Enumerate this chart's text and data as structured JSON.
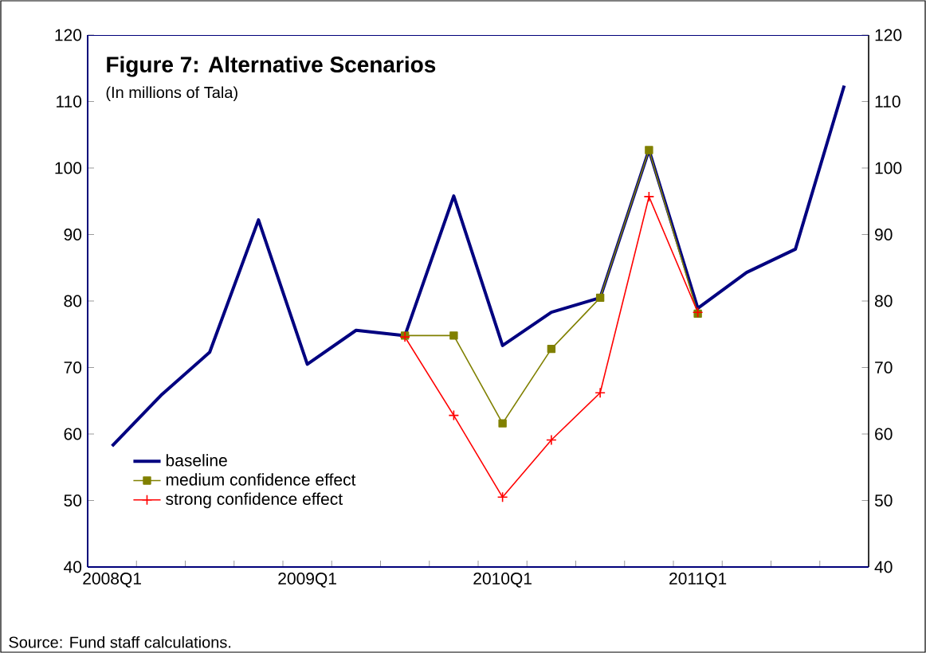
{
  "chart_data": {
    "type": "line",
    "title": "Figure 7: Alternative Scenarios",
    "subtitle": "(In millions of Tala)",
    "annotations": [
      "Source: Fund staff calculations."
    ],
    "categories": [
      "2008Q1",
      null,
      null,
      null,
      "2009Q1",
      null,
      null,
      null,
      "2010Q1",
      null,
      null,
      null,
      "2011Q1",
      null,
      null,
      null
    ],
    "series": [
      {
        "name": "baseline",
        "color": "#000080",
        "marker": "none",
        "values": [
          58.2,
          65.8,
          72.3,
          92.2,
          70.5,
          75.6,
          74.8,
          95.8,
          73.3,
          78.3,
          80.5,
          102.7,
          78.9,
          84.3,
          87.8,
          112.4
        ]
      },
      {
        "name": "medium confidence effect",
        "color": "#808000",
        "marker": "square",
        "values": [
          null,
          null,
          null,
          null,
          null,
          null,
          74.8,
          74.8,
          61.6,
          72.8,
          80.5,
          102.7,
          78.1,
          null,
          null,
          null
        ]
      },
      {
        "name": "strong confidence effect",
        "color": "#ff0000",
        "marker": "cross",
        "values": [
          null,
          null,
          null,
          null,
          null,
          null,
          74.6,
          62.8,
          50.5,
          59.1,
          66.2,
          95.7,
          78.3,
          null,
          null,
          null
        ]
      }
    ],
    "ylim": [
      40,
      120
    ],
    "yticks": [
      40,
      50,
      60,
      70,
      80,
      90,
      100,
      110,
      120
    ],
    "y2lim": [
      40,
      120
    ],
    "y2ticks": [
      40,
      50,
      60,
      70,
      80,
      90,
      100,
      110,
      120
    ],
    "legend": "bottom left",
    "grid": false
  }
}
